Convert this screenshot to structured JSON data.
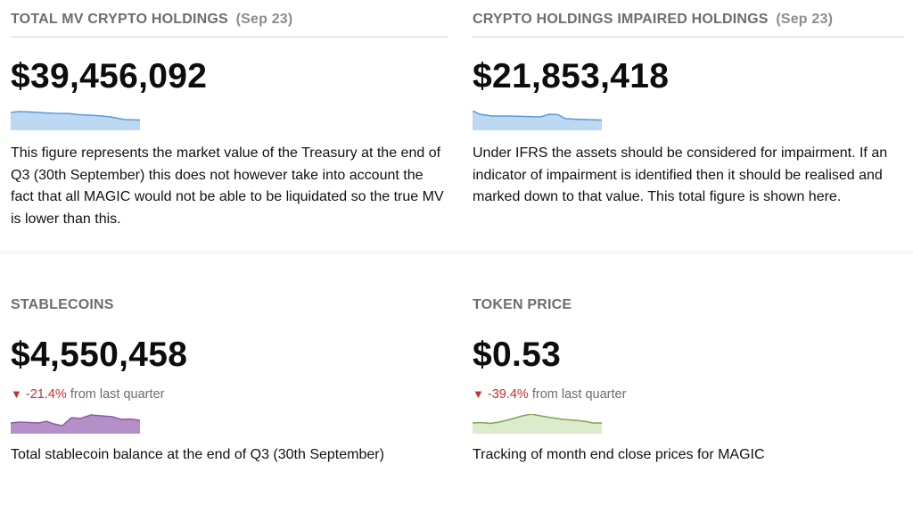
{
  "cards": {
    "total_mv": {
      "title": "TOTAL MV CRYPTO HOLDINGS",
      "subtitle": "(Sep 23)",
      "value": "$39,456,092",
      "description": "This figure represents the market value of the Treasury at the end of Q3 (30th September) this does not however take into account the fact that all MAGIC would not be able to be liquidated so the true MV is lower than this.",
      "spark_color": "#5b9bd5",
      "spark_fill": "#bcd8f2"
    },
    "impaired": {
      "title": "CRYPTO HOLDINGS IMPAIRED HOLDINGS",
      "subtitle": "(Sep 23)",
      "value": "$21,853,418",
      "description": "Under IFRS the assets should be considered for impairment. If an indicator of impairment is identified then it should be realised and marked down to that value. This total figure is shown here.",
      "spark_color": "#5b9bd5",
      "spark_fill": "#bcd8f2"
    },
    "stablecoins": {
      "title": "STABLECOINS",
      "value": "$4,550,458",
      "change_arrow": "▼",
      "change_pct": "-21.4%",
      "change_text": "from last quarter",
      "description": "Total stablecoin balance at the end of Q3 (30th September)",
      "spark_color": "#8e5ba8",
      "spark_fill": "#b58fc8"
    },
    "token_price": {
      "title": "TOKEN PRICE",
      "value": "$0.53",
      "change_arrow": "▼",
      "change_pct": "-39.4%",
      "change_text": "from last quarter",
      "description": "Tracking of month end close prices for MAGIC",
      "spark_color": "#7fa650",
      "spark_fill": "#dcebcb"
    }
  }
}
